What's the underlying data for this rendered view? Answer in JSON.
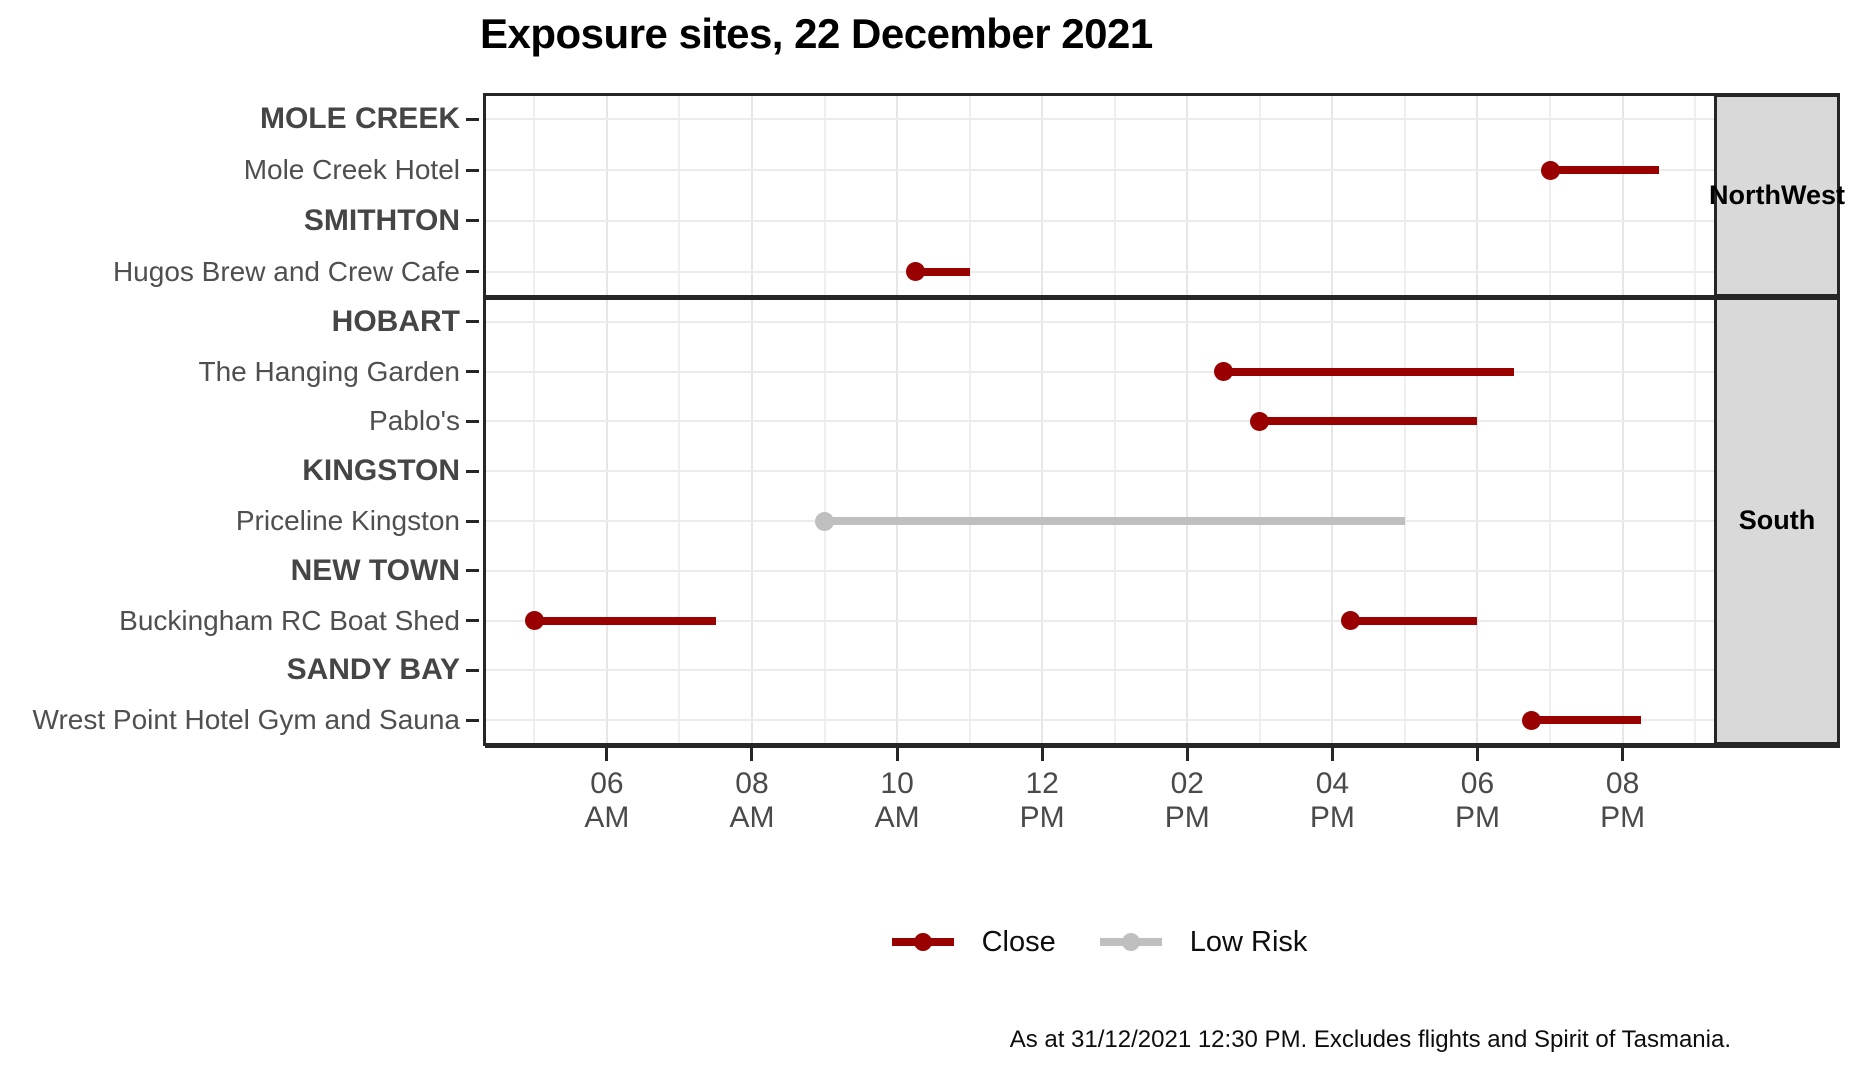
{
  "chart_data": {
    "type": "bar",
    "subtype": "horizontal-gantt-time-segments",
    "title": "Exposure sites, 22 December 2021",
    "caption": "As at 31/12/2021 12:30 PM. Excludes flights and Spirit of Tasmania.",
    "xlabel": "",
    "ylabel": "",
    "grid": "on, light gray vertical line every hour and horizontal line per row",
    "x_axis": {
      "unit": "time of day (hours, 24h decimal)",
      "range_hours": [
        4.32,
        21.26
      ],
      "ticks": [
        {
          "hour": 6,
          "line1": "06",
          "line2": "AM"
        },
        {
          "hour": 8,
          "line1": "08",
          "line2": "AM"
        },
        {
          "hour": 10,
          "line1": "10",
          "line2": "AM"
        },
        {
          "hour": 12,
          "line1": "12",
          "line2": "PM"
        },
        {
          "hour": 14,
          "line1": "02",
          "line2": "PM"
        },
        {
          "hour": 16,
          "line1": "04",
          "line2": "PM"
        },
        {
          "hour": 18,
          "line1": "06",
          "line2": "PM"
        },
        {
          "hour": 20,
          "line1": "08",
          "line2": "PM"
        }
      ]
    },
    "legend": {
      "position": "bottom-center",
      "items": [
        {
          "label": "Close",
          "color": "#990000"
        },
        {
          "label": "Low Risk",
          "color": "#BFBFBF"
        }
      ]
    },
    "facets": [
      {
        "strip_label": "North West",
        "strip_label_lines": [
          "North",
          "West"
        ],
        "rows": [
          {
            "label": "MOLE CREEK",
            "kind": "city",
            "bars": []
          },
          {
            "label": "Mole Creek Hotel",
            "kind": "site",
            "bars": [
              {
                "risk": "Close",
                "start_hour": 19.0,
                "end_hour": 20.5,
                "start_label": "7:00 PM",
                "end_label": "8:30 PM"
              }
            ]
          },
          {
            "label": "SMITHTON",
            "kind": "city",
            "bars": []
          },
          {
            "label": "Hugos Brew and Crew Cafe",
            "kind": "site",
            "bars": [
              {
                "risk": "Close",
                "start_hour": 10.25,
                "end_hour": 11.0,
                "start_label": "10:15 AM",
                "end_label": "11:00 AM"
              }
            ]
          }
        ]
      },
      {
        "strip_label": "South",
        "strip_label_lines": [
          "South"
        ],
        "rows": [
          {
            "label": "HOBART",
            "kind": "city",
            "bars": []
          },
          {
            "label": "The Hanging Garden",
            "kind": "site",
            "bars": [
              {
                "risk": "Close",
                "start_hour": 14.5,
                "end_hour": 18.5,
                "start_label": "2:30 PM",
                "end_label": "6:30 PM"
              }
            ]
          },
          {
            "label": "Pablo's",
            "kind": "site",
            "bars": [
              {
                "risk": "Close",
                "start_hour": 15.0,
                "end_hour": 18.0,
                "start_label": "3:00 PM",
                "end_label": "6:00 PM"
              }
            ]
          },
          {
            "label": "KINGSTON",
            "kind": "city",
            "bars": []
          },
          {
            "label": "Priceline Kingston",
            "kind": "site",
            "bars": [
              {
                "risk": "Low Risk",
                "start_hour": 9.0,
                "end_hour": 17.0,
                "start_label": "9:00 AM",
                "end_label": "5:00 PM"
              }
            ]
          },
          {
            "label": "NEW TOWN",
            "kind": "city",
            "bars": []
          },
          {
            "label": "Buckingham RC Boat Shed",
            "kind": "site",
            "bars": [
              {
                "risk": "Close",
                "start_hour": 5.0,
                "end_hour": 7.5,
                "start_label": "5:00 AM",
                "end_label": "7:30 AM"
              },
              {
                "risk": "Close",
                "start_hour": 16.25,
                "end_hour": 18.0,
                "start_label": "4:15 PM",
                "end_label": "6:00 PM"
              }
            ]
          },
          {
            "label": "SANDY BAY",
            "kind": "city",
            "bars": []
          },
          {
            "label": "Wrest Point Hotel Gym and Sauna",
            "kind": "site",
            "bars": [
              {
                "risk": "Close",
                "start_hour": 18.75,
                "end_hour": 20.25,
                "start_label": "6:45 PM",
                "end_label": "8:15 PM"
              }
            ]
          }
        ]
      }
    ],
    "colors": {
      "close": "#990000",
      "low_risk": "#BFBFBF",
      "strip_background": "#D9D9D9",
      "panel_border": "#262626",
      "gridline": "#EBEBEB",
      "axis_text": "#4a4a4a",
      "title_text": "#000000"
    }
  }
}
